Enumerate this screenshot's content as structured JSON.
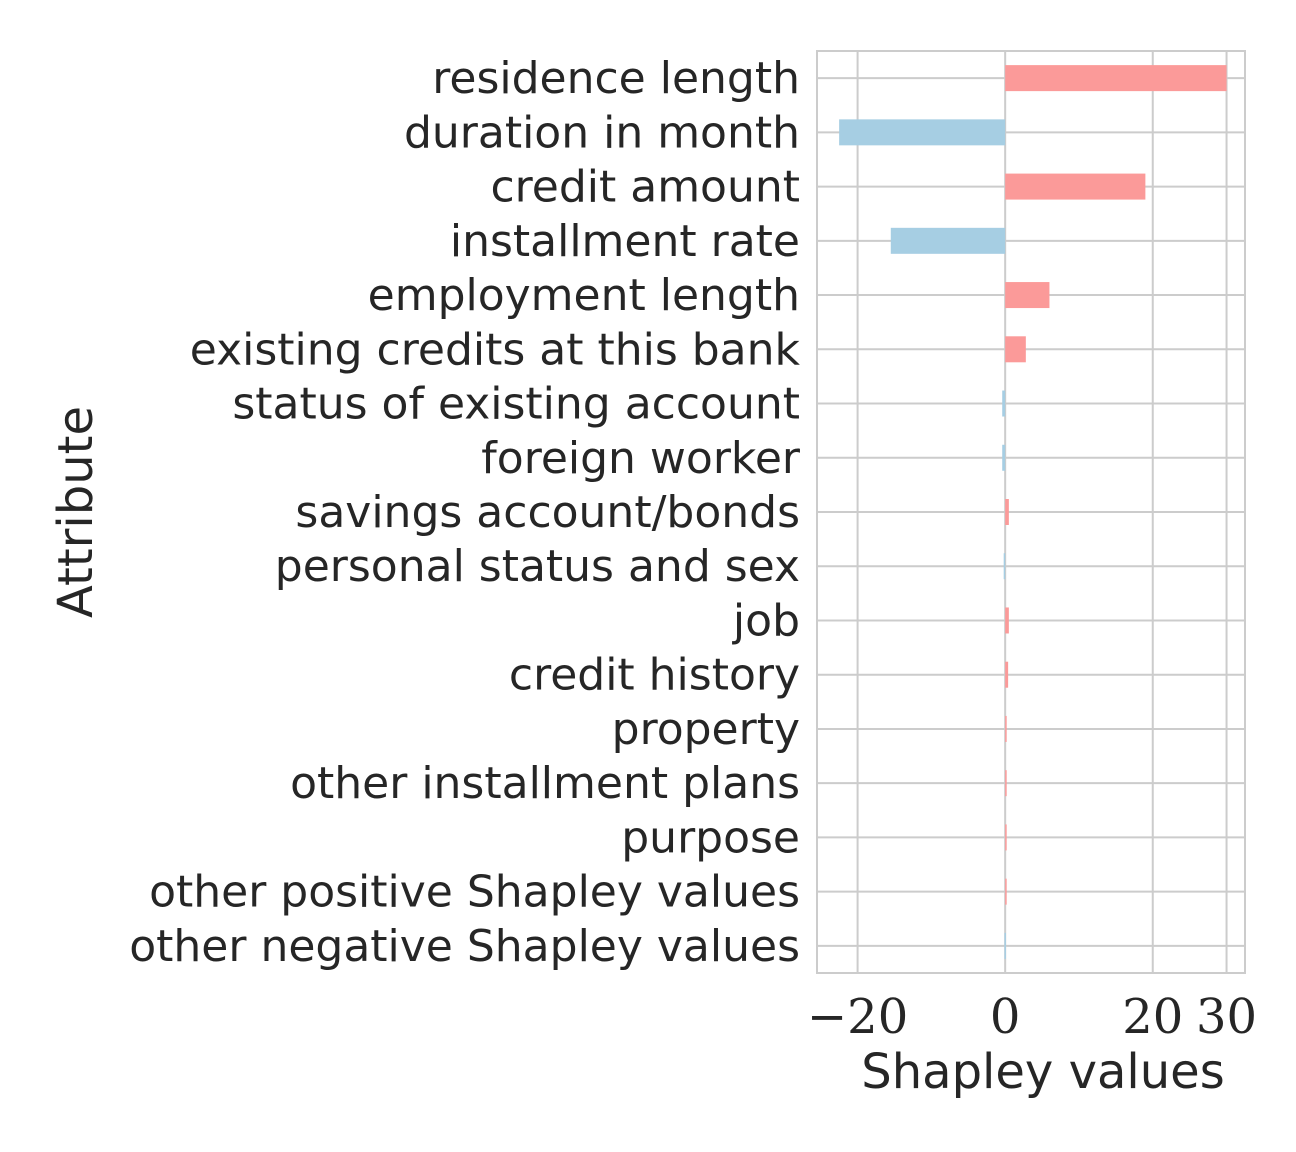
{
  "chart_data": {
    "type": "bar",
    "orientation": "horizontal",
    "xlabel": "Shapley values",
    "ylabel": "Attribute",
    "xlim": [
      -25.5,
      32.5
    ],
    "xticks": [
      -20,
      0,
      20,
      30
    ],
    "xtick_labels": [
      "−20",
      "0",
      "20",
      "30"
    ],
    "grid": true,
    "colors": {
      "positive": "#fb9a99",
      "negative": "#a6cee3"
    },
    "categories": [
      "residence length",
      "duration in month",
      "credit amount",
      "installment rate",
      "employment length",
      "existing credits at this bank",
      "status of existing account",
      "foreign worker",
      "savings account/bonds",
      "personal status and sex",
      "job",
      "credit history",
      "property",
      "other installment plans",
      "purpose",
      "other positive Shapley values",
      "other negative Shapley values"
    ],
    "values": [
      30,
      -22.5,
      19,
      -15.5,
      6,
      2.8,
      -0.4,
      -0.4,
      0.5,
      -0.2,
      0.5,
      0.4,
      0.1,
      0.1,
      0.1,
      0.1,
      -0.1
    ]
  }
}
